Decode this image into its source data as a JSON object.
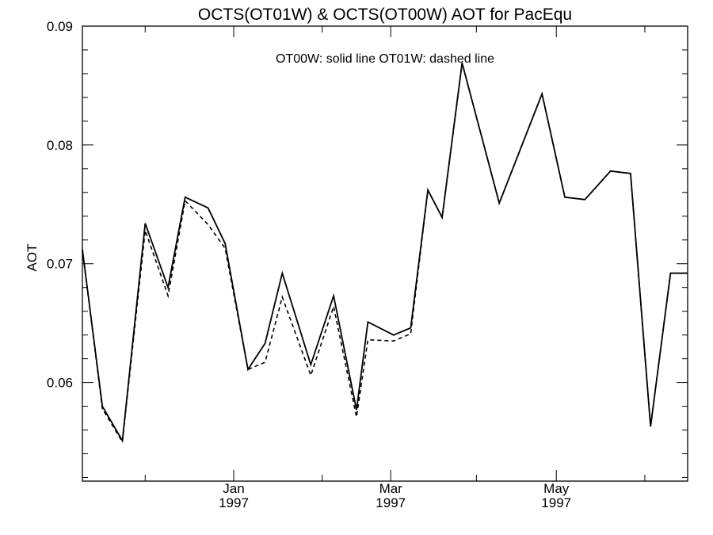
{
  "chart_data": {
    "type": "line",
    "title": "OCTS(OT01W) & OCTS(OT00W)  AOT for PacEqu",
    "annotation": "OT00W: solid line   OT01W: dashed line",
    "ylabel": "AOT",
    "xlabel": "",
    "x_unit": "day_index_from_1996-10-31",
    "ylim": [
      0.0517,
      0.09
    ],
    "xlim": [
      0,
      212
    ],
    "grid": false,
    "yticks": [
      "0.06",
      "0.07",
      "0.08",
      "0.09"
    ],
    "xtick_labels": [
      {
        "month": "Jan",
        "year": "1997",
        "pos": 53
      },
      {
        "month": "Mar",
        "year": "1997",
        "pos": 108
      },
      {
        "month": "May",
        "year": "1997",
        "pos": 166
      }
    ],
    "series": [
      {
        "name": "OT00W",
        "style": "solid",
        "x": [
          0,
          7,
          14,
          22,
          30,
          36,
          44,
          50,
          58,
          64,
          70,
          80,
          88,
          96,
          100,
          109,
          115,
          121,
          126,
          133,
          146,
          161,
          169,
          176,
          185,
          192,
          199,
          206,
          212
        ],
        "y": [
          0.0712,
          0.058,
          0.0551,
          0.0734,
          0.068,
          0.0756,
          0.0747,
          0.0717,
          0.0611,
          0.0633,
          0.0692,
          0.0615,
          0.0673,
          0.0577,
          0.0651,
          0.064,
          0.0646,
          0.0762,
          0.0739,
          0.0869,
          0.0751,
          0.0843,
          0.0756,
          0.0754,
          0.0778,
          0.0776,
          0.0563,
          0.0692,
          0.0692
        ]
      },
      {
        "name": "OT01W",
        "style": "dashed",
        "x": [
          0,
          7,
          14,
          22,
          30,
          36,
          44,
          50,
          58,
          64,
          70,
          80,
          88,
          96,
          100,
          109,
          115,
          121,
          126,
          133,
          146,
          161,
          169,
          176,
          185,
          192,
          199,
          206,
          212
        ],
        "y": [
          0.0712,
          0.0578,
          0.055,
          0.0728,
          0.0673,
          0.0753,
          0.0733,
          0.0713,
          0.0611,
          0.0617,
          0.0672,
          0.0606,
          0.0664,
          0.0571,
          0.0636,
          0.0635,
          0.0641,
          0.0762,
          0.0739,
          0.0869,
          0.0751,
          0.0843,
          0.0756,
          0.0754,
          0.0778,
          0.0776,
          0.0563,
          0.0692,
          0.0692
        ]
      }
    ]
  }
}
